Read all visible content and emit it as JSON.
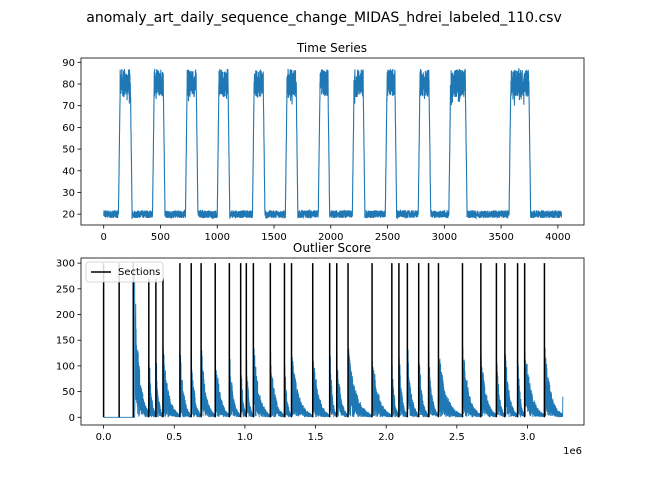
{
  "figure": {
    "suptitle": "anomaly_art_daily_sequence_change_MIDAS_hdrei_labeled_110.csv"
  },
  "colors": {
    "series": "#1f77b4",
    "sections": "#000000",
    "axes": "#000000",
    "background": "#ffffff"
  },
  "chart_data": [
    {
      "type": "line",
      "title": "Time Series",
      "xlabel": "",
      "ylabel": "",
      "xlim": [
        -200,
        4230
      ],
      "ylim": [
        15,
        92
      ],
      "xticks": [
        0,
        500,
        1000,
        1500,
        2000,
        2500,
        3000,
        3500,
        4000
      ],
      "xtick_labels": [
        "0",
        "500",
        "1000",
        "1500",
        "2000",
        "2500",
        "3000",
        "3500",
        "4000"
      ],
      "yticks": [
        20,
        30,
        40,
        50,
        60,
        70,
        80,
        90
      ],
      "ytick_labels": [
        "20",
        "30",
        "40",
        "50",
        "60",
        "70",
        "80",
        "90"
      ],
      "grid": false,
      "pattern": {
        "n_points": 4032,
        "low_level": 20,
        "high_level": 80,
        "high_segments": [
          [
            130,
            250
          ],
          [
            430,
            540
          ],
          [
            720,
            830
          ],
          [
            1000,
            1110
          ],
          [
            1310,
            1420
          ],
          [
            1600,
            1710
          ],
          [
            1890,
            1990
          ],
          [
            2190,
            2300
          ],
          [
            2480,
            2580
          ],
          [
            2770,
            2880
          ],
          [
            3040,
            3200
          ],
          [
            3570,
            3760
          ]
        ]
      }
    },
    {
      "type": "line",
      "title": "Outlier Score",
      "xlabel": "",
      "ylabel": "",
      "x_scale_label": "1e6",
      "xlim": [
        -160000,
        3400000
      ],
      "ylim": [
        -15,
        310
      ],
      "xticks": [
        0,
        500000,
        1000000,
        1500000,
        2000000,
        2500000,
        3000000
      ],
      "xtick_labels": [
        "0.0",
        "0.5",
        "1.0",
        "1.5",
        "2.0",
        "2.5",
        "3.0"
      ],
      "yticks": [
        0,
        50,
        100,
        150,
        200,
        250,
        300
      ],
      "ytick_labels": [
        "0",
        "50",
        "100",
        "150",
        "200",
        "250",
        "300"
      ],
      "grid": false,
      "legend": {
        "entries": [
          "Sections"
        ],
        "placement": "upper-left"
      },
      "sections": [
        {
          "x": 0,
          "top": 300
        },
        {
          "x": 110000,
          "top": 300
        },
        {
          "x": 210000,
          "top": 300
        },
        {
          "x": 320000,
          "top": 270
        },
        {
          "x": 370000,
          "top": 270
        },
        {
          "x": 420000,
          "top": 270
        },
        {
          "x": 540000,
          "top": 300
        },
        {
          "x": 620000,
          "top": 300
        },
        {
          "x": 690000,
          "top": 300
        },
        {
          "x": 790000,
          "top": 300
        },
        {
          "x": 890000,
          "top": 300
        },
        {
          "x": 970000,
          "top": 300
        },
        {
          "x": 1010000,
          "top": 300
        },
        {
          "x": 1060000,
          "top": 300
        },
        {
          "x": 1180000,
          "top": 300
        },
        {
          "x": 1280000,
          "top": 300
        },
        {
          "x": 1330000,
          "top": 300
        },
        {
          "x": 1480000,
          "top": 300
        },
        {
          "x": 1600000,
          "top": 300
        },
        {
          "x": 1650000,
          "top": 300
        },
        {
          "x": 1730000,
          "top": 300
        },
        {
          "x": 1900000,
          "top": 300
        },
        {
          "x": 2040000,
          "top": 300
        },
        {
          "x": 2090000,
          "top": 300
        },
        {
          "x": 2150000,
          "top": 300
        },
        {
          "x": 2230000,
          "top": 300
        },
        {
          "x": 2300000,
          "top": 300
        },
        {
          "x": 2370000,
          "top": 300
        },
        {
          "x": 2540000,
          "top": 300
        },
        {
          "x": 2670000,
          "top": 300
        },
        {
          "x": 2780000,
          "top": 300
        },
        {
          "x": 2840000,
          "top": 300
        },
        {
          "x": 2930000,
          "top": 300
        },
        {
          "x": 2980000,
          "top": 300
        },
        {
          "x": 3120000,
          "top": 300
        }
      ],
      "score_decay": {
        "start": 220000,
        "end": 3250000,
        "first_peak": 290,
        "typical_peak": 160,
        "floor": 0
      }
    }
  ]
}
